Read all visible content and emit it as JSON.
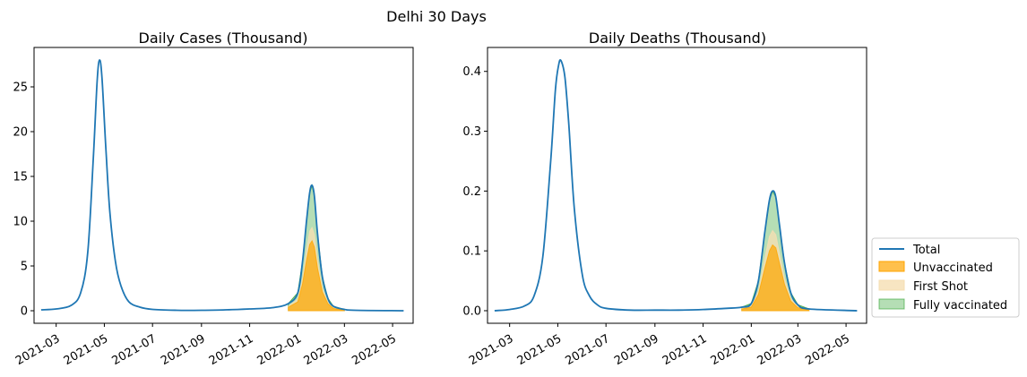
{
  "suptitle": "Delhi 30 Days",
  "colors": {
    "total": "#1f77b4",
    "unvaccinated": "#ffa500",
    "first_shot": "#f5deb3",
    "fully_vaccinated": "#2ca02c"
  },
  "legend": {
    "placement": "right",
    "entries": [
      "Total",
      "Unvaccinated",
      "First Shot",
      "Fully vaccinated"
    ]
  },
  "chart_data": [
    {
      "type": "area",
      "title": "Daily Cases (Thousand)",
      "xlabel": "",
      "ylabel": "",
      "x_range": [
        "2021-02-01",
        "2022-05-27"
      ],
      "ylim": [
        -1.4,
        29.4
      ],
      "y_ticks": [
        0,
        5,
        10,
        15,
        20,
        25
      ],
      "y_tick_labels": [
        "0",
        "5",
        "10",
        "15",
        "20",
        "25"
      ],
      "x_ticks": [
        "2021-03-01",
        "2021-05-01",
        "2021-07-01",
        "2021-09-01",
        "2021-11-01",
        "2022-01-01",
        "2022-03-01",
        "2022-05-01"
      ],
      "x_tick_labels": [
        "2021-03",
        "2021-05",
        "2021-07",
        "2021-09",
        "2021-11",
        "2022-01",
        "2022-03",
        "2022-05"
      ],
      "series": [
        {
          "name": "Total",
          "kind": "line",
          "x": [
            "2021-02-10",
            "2021-03-01",
            "2021-03-20",
            "2021-04-01",
            "2021-04-10",
            "2021-04-17",
            "2021-04-22",
            "2021-04-25",
            "2021-04-28",
            "2021-05-03",
            "2021-05-08",
            "2021-05-15",
            "2021-05-22",
            "2021-06-01",
            "2021-06-15",
            "2021-07-01",
            "2021-08-01",
            "2021-09-01",
            "2021-10-01",
            "2021-11-01",
            "2021-12-01",
            "2021-12-20",
            "2022-01-01",
            "2022-01-07",
            "2022-01-12",
            "2022-01-16",
            "2022-01-19",
            "2022-01-22",
            "2022-01-26",
            "2022-02-01",
            "2022-02-08",
            "2022-02-15",
            "2022-03-01",
            "2022-03-15",
            "2022-05-15"
          ],
          "y": [
            0.1,
            0.2,
            0.6,
            2.0,
            6.5,
            17.0,
            25.8,
            28.0,
            26.0,
            18.0,
            11.0,
            5.5,
            2.8,
            1.0,
            0.4,
            0.15,
            0.05,
            0.05,
            0.1,
            0.2,
            0.35,
            0.8,
            2.0,
            5.5,
            10.0,
            13.2,
            14.0,
            12.8,
            8.5,
            3.8,
            1.4,
            0.5,
            0.15,
            0.05,
            0.0
          ]
        },
        {
          "name": "Unvaccinated",
          "kind": "area",
          "x": [
            "2021-12-20",
            "2022-01-01",
            "2022-01-07",
            "2022-01-12",
            "2022-01-16",
            "2022-01-19",
            "2022-01-22",
            "2022-01-26",
            "2022-02-01",
            "2022-02-08",
            "2022-02-15",
            "2022-03-01"
          ],
          "y": [
            0.4,
            1.0,
            3.0,
            5.6,
            7.4,
            7.8,
            7.1,
            4.7,
            2.1,
            0.8,
            0.25,
            0.05
          ]
        },
        {
          "name": "First Shot",
          "kind": "area",
          "x": [
            "2021-12-20",
            "2022-01-01",
            "2022-01-07",
            "2022-01-12",
            "2022-01-16",
            "2022-01-19",
            "2022-01-22",
            "2022-01-26",
            "2022-02-01",
            "2022-02-08",
            "2022-02-15",
            "2022-03-01"
          ],
          "y": [
            0.5,
            1.3,
            3.6,
            6.7,
            8.9,
            9.3,
            8.5,
            5.6,
            2.5,
            0.95,
            0.3,
            0.06
          ]
        },
        {
          "name": "Fully vaccinated",
          "kind": "area",
          "x": [
            "2021-12-20",
            "2022-01-01",
            "2022-01-07",
            "2022-01-12",
            "2022-01-16",
            "2022-01-19",
            "2022-01-22",
            "2022-01-26",
            "2022-02-01",
            "2022-02-08",
            "2022-02-15",
            "2022-03-01"
          ],
          "y": [
            0.8,
            2.0,
            5.5,
            10.0,
            13.2,
            14.0,
            12.8,
            8.5,
            3.8,
            1.4,
            0.5,
            0.15
          ]
        }
      ]
    },
    {
      "type": "area",
      "title": "Daily Deaths (Thousand)",
      "xlabel": "",
      "ylabel": "",
      "x_range": [
        "2021-02-01",
        "2022-05-27"
      ],
      "ylim": [
        -0.021,
        0.44
      ],
      "y_ticks": [
        0.0,
        0.1,
        0.2,
        0.3,
        0.4
      ],
      "y_tick_labels": [
        "0.0",
        "0.1",
        "0.2",
        "0.3",
        "0.4"
      ],
      "x_ticks": [
        "2021-03-01",
        "2021-05-01",
        "2021-07-01",
        "2021-09-01",
        "2021-11-01",
        "2022-01-01",
        "2022-03-01",
        "2022-05-01"
      ],
      "x_tick_labels": [
        "2021-03",
        "2021-05",
        "2021-07",
        "2021-09",
        "2021-11",
        "2022-01",
        "2022-03",
        "2022-05"
      ],
      "series": [
        {
          "name": "Total",
          "kind": "line",
          "x": [
            "2021-02-10",
            "2021-03-01",
            "2021-03-20",
            "2021-04-01",
            "2021-04-12",
            "2021-04-22",
            "2021-04-28",
            "2021-05-02",
            "2021-05-05",
            "2021-05-10",
            "2021-05-15",
            "2021-05-22",
            "2021-06-01",
            "2021-06-10",
            "2021-06-20",
            "2021-07-01",
            "2021-08-01",
            "2021-09-01",
            "2021-10-01",
            "2021-11-01",
            "2021-12-01",
            "2021-12-20",
            "2022-01-01",
            "2022-01-10",
            "2022-01-18",
            "2022-01-24",
            "2022-01-28",
            "2022-02-01",
            "2022-02-06",
            "2022-02-12",
            "2022-02-20",
            "2022-03-01",
            "2022-03-15",
            "2022-05-15"
          ],
          "y": [
            0.0,
            0.002,
            0.008,
            0.025,
            0.09,
            0.25,
            0.37,
            0.41,
            0.418,
            0.39,
            0.31,
            0.17,
            0.06,
            0.025,
            0.01,
            0.004,
            0.001,
            0.001,
            0.001,
            0.002,
            0.004,
            0.006,
            0.012,
            0.05,
            0.13,
            0.185,
            0.2,
            0.19,
            0.14,
            0.08,
            0.03,
            0.01,
            0.003,
            0.0
          ]
        },
        {
          "name": "Unvaccinated",
          "kind": "area",
          "x": [
            "2021-12-20",
            "2022-01-01",
            "2022-01-10",
            "2022-01-18",
            "2022-01-24",
            "2022-01-28",
            "2022-02-01",
            "2022-02-06",
            "2022-02-12",
            "2022-02-20",
            "2022-03-01",
            "2022-03-15"
          ],
          "y": [
            0.003,
            0.006,
            0.027,
            0.07,
            0.1,
            0.11,
            0.105,
            0.077,
            0.044,
            0.016,
            0.005,
            0.001
          ]
        },
        {
          "name": "First Shot",
          "kind": "area",
          "x": [
            "2021-12-20",
            "2022-01-01",
            "2022-01-10",
            "2022-01-18",
            "2022-01-24",
            "2022-01-28",
            "2022-02-01",
            "2022-02-06",
            "2022-02-12",
            "2022-02-20",
            "2022-03-01",
            "2022-03-15"
          ],
          "y": [
            0.004,
            0.008,
            0.033,
            0.087,
            0.124,
            0.134,
            0.127,
            0.094,
            0.054,
            0.02,
            0.007,
            0.002
          ]
        },
        {
          "name": "Fully vaccinated",
          "kind": "area",
          "x": [
            "2021-12-20",
            "2022-01-01",
            "2022-01-10",
            "2022-01-18",
            "2022-01-24",
            "2022-01-28",
            "2022-02-01",
            "2022-02-06",
            "2022-02-12",
            "2022-02-20",
            "2022-03-01",
            "2022-03-15"
          ],
          "y": [
            0.006,
            0.012,
            0.05,
            0.13,
            0.185,
            0.2,
            0.19,
            0.14,
            0.08,
            0.03,
            0.01,
            0.003
          ]
        }
      ]
    }
  ]
}
